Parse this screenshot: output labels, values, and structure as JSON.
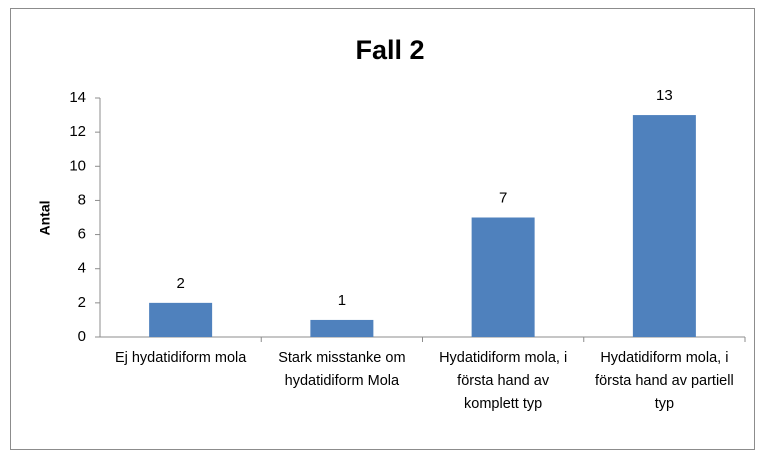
{
  "chart_data": {
    "type": "bar",
    "title": "Fall 2",
    "y_label": "Antal",
    "categories": [
      "Ej hydatidiform mola",
      "Stark misstanke om hydatidiform Mola",
      "Hydatidiform mola, i första hand av komplett typ",
      "Hydatidiform mola, i första hand av partiell typ"
    ],
    "values": [
      2,
      1,
      7,
      13
    ],
    "color": "#4f81bd",
    "ylim": [
      0,
      14
    ],
    "yticks": [
      0,
      2,
      4,
      6,
      8,
      10,
      12,
      14
    ],
    "grid": false
  }
}
